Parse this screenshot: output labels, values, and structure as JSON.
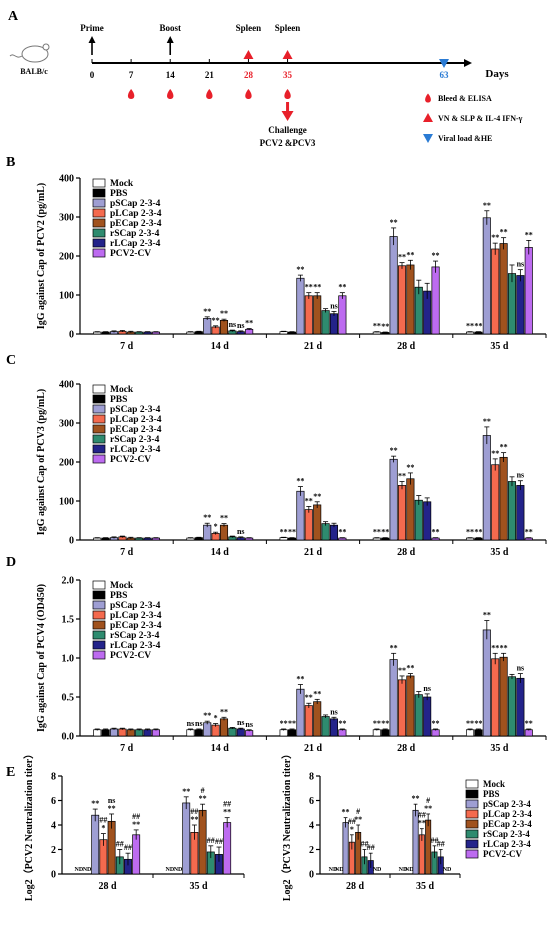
{
  "colors": {
    "series": [
      "#ffffff",
      "#000000",
      "#9e9ed3",
      "#f46a4e",
      "#a0521e",
      "#2e8b6f",
      "#23238a",
      "#bd6bf0"
    ],
    "highlight_red": "#e8202a",
    "highlight_blue": "#2a7bd4",
    "axis": "#000000"
  },
  "series_names": [
    "Mock",
    "PBS",
    "pSCap 2-3-4",
    "pLCap 2-3-4",
    "pECap 2-3-4",
    "rSCap 2-3-4",
    "rLCap 2-3-4",
    "PCV2-CV"
  ],
  "panel_a": {
    "letter": "A",
    "mouse_label": "BALB/c",
    "axis_unit": "Days",
    "days": [
      {
        "d": 0,
        "label": "0",
        "color": "black"
      },
      {
        "d": 7,
        "label": "7",
        "color": "black"
      },
      {
        "d": 14,
        "label": "14",
        "color": "black"
      },
      {
        "d": 21,
        "label": "21",
        "color": "black"
      },
      {
        "d": 28,
        "label": "28",
        "color": "red"
      },
      {
        "d": 35,
        "label": "35",
        "color": "red"
      },
      {
        "d": 63,
        "label": "63",
        "color": "blue"
      }
    ],
    "events": [
      {
        "d": 0,
        "label": "Prime",
        "marker": "black-arrow"
      },
      {
        "d": 14,
        "label": "Boost",
        "marker": "black-arrow"
      },
      {
        "d": 28,
        "label": "Spleen",
        "marker": "red-triangle"
      },
      {
        "d": 35,
        "label": "Spleen",
        "marker": "red-triangle"
      }
    ],
    "bleed_days": [
      7,
      14,
      21,
      28,
      35
    ],
    "viral_day": 63,
    "challenge_label": "Challenge",
    "challenge_detail": "PCV2 &PCV3",
    "legend": [
      {
        "marker": "blood-drop-icon",
        "label": "Bleed & ELISA"
      },
      {
        "marker": "red-triangle-icon",
        "label": "VN & SLP & IL-4 IFN-γ"
      },
      {
        "marker": "blue-triangle-icon",
        "label": "Viral load &HE"
      }
    ]
  },
  "chart_data": [
    {
      "id": "B",
      "letter": "B",
      "type": "bar",
      "ylabel": "IgG against Cap of PCV2 (pg/mL)",
      "ylim": [
        0,
        400
      ],
      "yticks": [
        0,
        100,
        200,
        300,
        400
      ],
      "categories": [
        "7 d",
        "14 d",
        "21 d",
        "28 d",
        "35 d"
      ],
      "series": [
        {
          "name": "Mock",
          "values": [
            5,
            5,
            6,
            5,
            5
          ],
          "errors": [
            1,
            1,
            1,
            1,
            1
          ],
          "sig": [
            "",
            "",
            "",
            "**",
            "**"
          ]
        },
        {
          "name": "PBS",
          "values": [
            5,
            6,
            5,
            4,
            5
          ],
          "errors": [
            1,
            1,
            1,
            1,
            1
          ],
          "sig": [
            "",
            "",
            "",
            "**",
            "**"
          ]
        },
        {
          "name": "pSCap 2-3-4",
          "values": [
            6,
            40,
            143,
            250,
            298
          ],
          "errors": [
            2,
            4,
            8,
            22,
            18
          ],
          "sig": [
            "",
            "**",
            "**",
            "**",
            "**"
          ]
        },
        {
          "name": "pLCap 2-3-4",
          "values": [
            7,
            18,
            98,
            175,
            218
          ],
          "errors": [
            2,
            3,
            8,
            8,
            15
          ],
          "sig": [
            "",
            "**",
            "**",
            "**",
            "**"
          ]
        },
        {
          "name": "pECap 2-3-4",
          "values": [
            5,
            35,
            98,
            177,
            232
          ],
          "errors": [
            2,
            3,
            8,
            12,
            15
          ],
          "sig": [
            "",
            "**",
            "**",
            "**",
            "**"
          ]
        },
        {
          "name": "rSCap 2-3-4",
          "values": [
            5,
            8,
            60,
            120,
            155
          ],
          "errors": [
            1,
            2,
            5,
            18,
            22
          ],
          "sig": [
            "",
            "ns",
            "",
            "",
            ""
          ]
        },
        {
          "name": "rLCap 2-3-4",
          "values": [
            5,
            6,
            52,
            110,
            150
          ],
          "errors": [
            1,
            2,
            6,
            20,
            15
          ],
          "sig": [
            "",
            "ns",
            "ns",
            "",
            "ns"
          ]
        },
        {
          "name": "PCV2-CV",
          "values": [
            5,
            12,
            98,
            172,
            222
          ],
          "errors": [
            1,
            2,
            8,
            15,
            18
          ],
          "sig": [
            "",
            "**",
            "**",
            "**",
            "**"
          ]
        }
      ]
    },
    {
      "id": "C",
      "letter": "C",
      "type": "bar",
      "ylabel": "IgG against Cap of PCV3 (pg/mL)",
      "ylim": [
        0,
        400
      ],
      "yticks": [
        0,
        100,
        200,
        300,
        400
      ],
      "categories": [
        "7 d",
        "14 d",
        "21 d",
        "28 d",
        "35 d"
      ],
      "series": [
        {
          "name": "Mock",
          "values": [
            5,
            5,
            6,
            5,
            5
          ],
          "errors": [
            1,
            1,
            1,
            1,
            1
          ],
          "sig": [
            "",
            "",
            "**",
            "**",
            "**"
          ]
        },
        {
          "name": "PBS",
          "values": [
            5,
            6,
            5,
            5,
            5
          ],
          "errors": [
            1,
            1,
            1,
            1,
            1
          ],
          "sig": [
            "",
            "",
            "**",
            "**",
            "**"
          ]
        },
        {
          "name": "pSCap 2-3-4",
          "values": [
            6,
            38,
            125,
            207,
            268
          ],
          "errors": [
            2,
            5,
            12,
            8,
            22
          ],
          "sig": [
            "",
            "**",
            "**",
            "**",
            "**"
          ]
        },
        {
          "name": "pLCap 2-3-4",
          "values": [
            8,
            17,
            78,
            140,
            193
          ],
          "errors": [
            2,
            3,
            8,
            10,
            15
          ],
          "sig": [
            "",
            "*",
            "**",
            "**",
            "**"
          ]
        },
        {
          "name": "pECap 2-3-4",
          "values": [
            5,
            38,
            90,
            157,
            212
          ],
          "errors": [
            2,
            4,
            8,
            15,
            12
          ],
          "sig": [
            "",
            "**",
            "**",
            "**",
            "**"
          ]
        },
        {
          "name": "rSCap 2-3-4",
          "values": [
            5,
            8,
            42,
            102,
            150
          ],
          "errors": [
            1,
            2,
            5,
            12,
            12
          ],
          "sig": [
            "",
            "",
            "",
            "",
            ""
          ]
        },
        {
          "name": "rLCap 2-3-4",
          "values": [
            5,
            6,
            38,
            98,
            140
          ],
          "errors": [
            1,
            2,
            5,
            10,
            12
          ],
          "sig": [
            "",
            "ns",
            "",
            "",
            "ns"
          ]
        },
        {
          "name": "PCV2-CV",
          "values": [
            5,
            5,
            5,
            5,
            5
          ],
          "errors": [
            1,
            1,
            1,
            1,
            1
          ],
          "sig": [
            "",
            "",
            "**",
            "**",
            "**"
          ]
        }
      ]
    },
    {
      "id": "D",
      "letter": "D",
      "type": "bar",
      "ylabel": "IgG against Cap of PCV4 (OD450)",
      "ylim": [
        0,
        2.0
      ],
      "yticks": [
        0,
        0.5,
        1.0,
        1.5,
        2.0
      ],
      "ytick_labels": [
        "0.0",
        "0.5",
        "1.0",
        "1.5",
        "2.0"
      ],
      "categories": [
        "7 d",
        "14 d",
        "21 d",
        "28 d",
        "35 d"
      ],
      "series": [
        {
          "name": "Mock",
          "values": [
            0.08,
            0.08,
            0.08,
            0.08,
            0.08
          ],
          "errors": [
            0.01,
            0.01,
            0.01,
            0.01,
            0.01
          ],
          "sig": [
            "",
            "ns",
            "**",
            "**",
            "**"
          ]
        },
        {
          "name": "PBS",
          "values": [
            0.08,
            0.08,
            0.08,
            0.08,
            0.08
          ],
          "errors": [
            0.01,
            0.01,
            0.01,
            0.01,
            0.01
          ],
          "sig": [
            "",
            "ns",
            "**",
            "**",
            "**"
          ]
        },
        {
          "name": "pSCap 2-3-4",
          "values": [
            0.09,
            0.17,
            0.6,
            0.98,
            1.36
          ],
          "errors": [
            0.01,
            0.02,
            0.06,
            0.08,
            0.12
          ],
          "sig": [
            "",
            "**",
            "**",
            "**",
            "**"
          ]
        },
        {
          "name": "pLCap 2-3-4",
          "values": [
            0.09,
            0.14,
            0.39,
            0.72,
            0.99
          ],
          "errors": [
            0.01,
            0.02,
            0.03,
            0.05,
            0.07
          ],
          "sig": [
            "",
            "*",
            "**",
            "**",
            "**"
          ]
        },
        {
          "name": "pECap 2-3-4",
          "values": [
            0.08,
            0.22,
            0.44,
            0.77,
            1.01
          ],
          "errors": [
            0.01,
            0.02,
            0.03,
            0.03,
            0.05
          ],
          "sig": [
            "",
            "**",
            "**",
            "**",
            "**"
          ]
        },
        {
          "name": "rSCap 2-3-4",
          "values": [
            0.08,
            0.1,
            0.25,
            0.53,
            0.76
          ],
          "errors": [
            0.01,
            0.01,
            0.02,
            0.04,
            0.03
          ],
          "sig": [
            "",
            "",
            "",
            "",
            ""
          ]
        },
        {
          "name": "rLCap 2-3-4",
          "values": [
            0.08,
            0.09,
            0.22,
            0.5,
            0.74
          ],
          "errors": [
            0.01,
            0.01,
            0.02,
            0.04,
            0.06
          ],
          "sig": [
            "",
            "ns",
            "ns",
            "ns",
            "ns"
          ]
        },
        {
          "name": "PCV2-CV",
          "values": [
            0.08,
            0.07,
            0.08,
            0.08,
            0.08
          ],
          "errors": [
            0.01,
            0.01,
            0.01,
            0.01,
            0.01
          ],
          "sig": [
            "",
            "ns",
            "**",
            "**",
            "**"
          ]
        }
      ]
    },
    {
      "id": "E1",
      "letter": "E",
      "type": "bar",
      "ylabel": "Log2（PCV2 Neutralization titer）",
      "ylim": [
        0,
        8
      ],
      "yticks": [
        0,
        2,
        4,
        6,
        8
      ],
      "categories": [
        "28 d",
        "35 d"
      ],
      "series": [
        {
          "name": "Mock",
          "values": [
            0,
            0
          ],
          "errors": [
            0,
            0
          ],
          "nd": true,
          "sig": [
            "",
            ""
          ]
        },
        {
          "name": "PBS",
          "values": [
            0,
            0
          ],
          "errors": [
            0,
            0
          ],
          "nd": true,
          "sig": [
            "",
            ""
          ]
        },
        {
          "name": "pSCap 2-3-4",
          "values": [
            4.8,
            5.8
          ],
          "errors": [
            0.5,
            0.5
          ],
          "sig": [
            "**",
            "**"
          ]
        },
        {
          "name": "pLCap 2-3-4",
          "values": [
            2.8,
            3.4
          ],
          "errors": [
            0.5,
            0.6
          ],
          "sig": [
            "##\n*",
            "##\n**"
          ]
        },
        {
          "name": "pECap 2-3-4",
          "values": [
            4.3,
            5.2
          ],
          "errors": [
            0.6,
            0.5
          ],
          "sig": [
            "ns\n**",
            "#\n**"
          ]
        },
        {
          "name": "rSCap 2-3-4",
          "values": [
            1.4,
            1.8
          ],
          "errors": [
            0.6,
            0.5
          ],
          "sig": [
            "##",
            "##"
          ]
        },
        {
          "name": "rLCap 2-3-4",
          "values": [
            1.2,
            1.6
          ],
          "errors": [
            0.5,
            0.6
          ],
          "sig": [
            "##",
            "##"
          ]
        },
        {
          "name": "PCV2-CV",
          "values": [
            3.2,
            4.2
          ],
          "errors": [
            0.4,
            0.4
          ],
          "sig": [
            "##\n**",
            "##\n**"
          ]
        }
      ]
    },
    {
      "id": "E2",
      "letter": "",
      "type": "bar",
      "ylabel": "Log2（PCV3 Neutralization titer）",
      "ylim": [
        0,
        8
      ],
      "yticks": [
        0,
        2,
        4,
        6,
        8
      ],
      "categories": [
        "28 d",
        "35 d"
      ],
      "series": [
        {
          "name": "Mock",
          "values": [
            0,
            0
          ],
          "errors": [
            0,
            0
          ],
          "nd": true,
          "sig": [
            "",
            ""
          ]
        },
        {
          "name": "PBS",
          "values": [
            0,
            0
          ],
          "errors": [
            0,
            0
          ],
          "nd": true,
          "sig": [
            "",
            ""
          ]
        },
        {
          "name": "pSCap 2-3-4",
          "values": [
            4.2,
            5.2
          ],
          "errors": [
            0.4,
            0.5
          ],
          "sig": [
            "**",
            "**"
          ]
        },
        {
          "name": "pLCap 2-3-4",
          "values": [
            2.6,
            3.2
          ],
          "errors": [
            0.6,
            0.5
          ],
          "sig": [
            "##\n*",
            "##\n**"
          ]
        },
        {
          "name": "pECap 2-3-4",
          "values": [
            3.4,
            4.4
          ],
          "errors": [
            0.6,
            0.5
          ],
          "sig": [
            "#\n**",
            "#\n**"
          ]
        },
        {
          "name": "rSCap 2-3-4",
          "values": [
            1.4,
            1.8
          ],
          "errors": [
            0.6,
            0.5
          ],
          "sig": [
            "##",
            "##"
          ]
        },
        {
          "name": "rLCap 2-3-4",
          "values": [
            1.1,
            1.4
          ],
          "errors": [
            0.6,
            0.6
          ],
          "sig": [
            "##",
            "##"
          ]
        },
        {
          "name": "PCV2-CV",
          "values": [
            0,
            0
          ],
          "errors": [
            0,
            0
          ],
          "nd": true,
          "sig": [
            "",
            ""
          ]
        }
      ]
    }
  ],
  "nd_label": "ND"
}
